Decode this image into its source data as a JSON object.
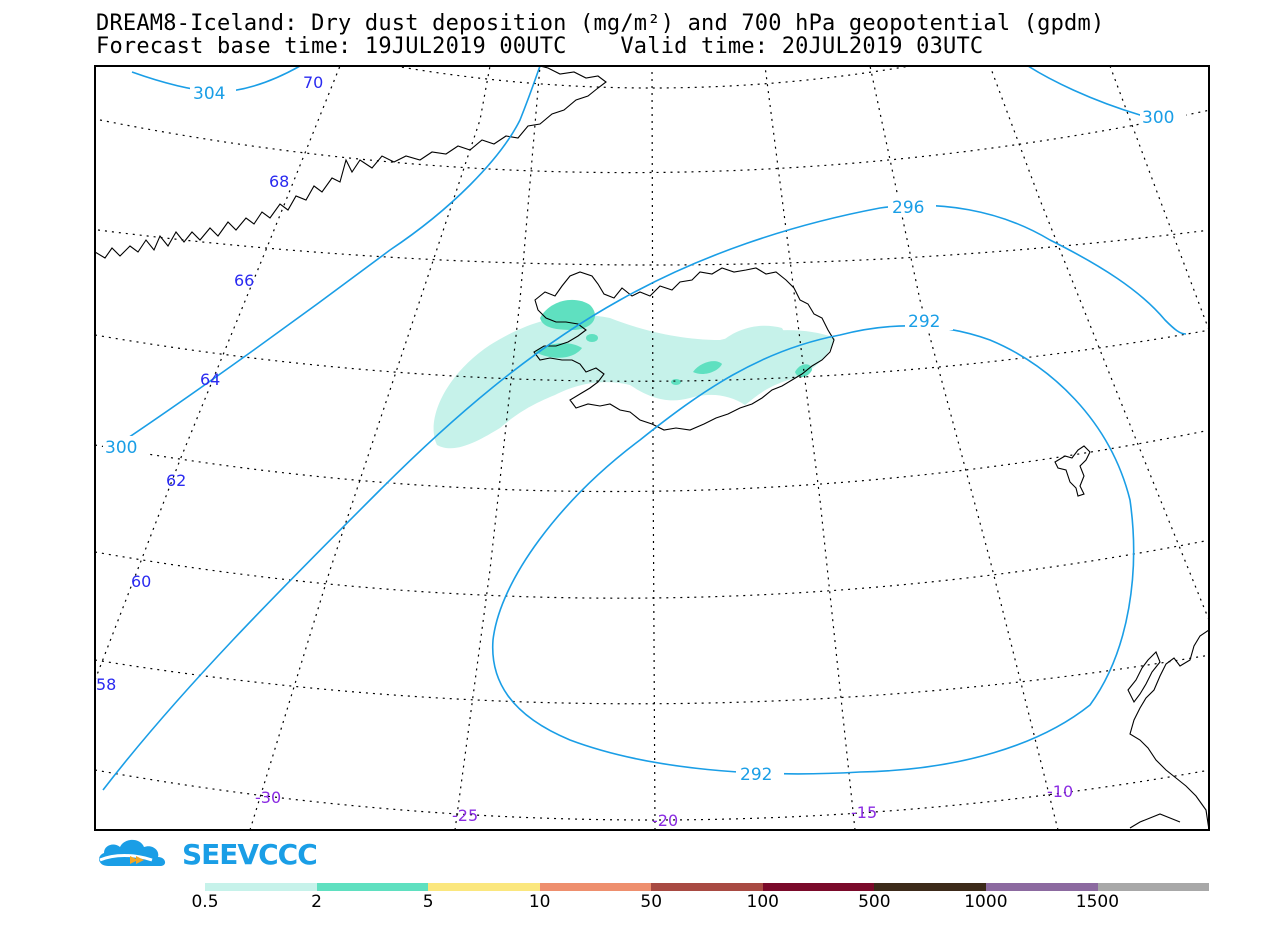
{
  "title": {
    "line1": "DREAM8-Iceland: Dry dust deposition (mg/m²) and 700 hPa geopotential (gpdm)",
    "line2": "Forecast base time: 19JUL2019 00UTC    Valid time: 20JUL2019 03UTC"
  },
  "map": {
    "lat_labels": [
      "70",
      "68",
      "66",
      "64",
      "62",
      "60",
      "58"
    ],
    "lon_labels": [
      "-30",
      "-25",
      "-20",
      "-15",
      "-10"
    ],
    "contour_labels": [
      "304",
      "300",
      "300",
      "296",
      "292",
      "292"
    ],
    "contour_color": "#1a9ee6",
    "dust_color_light": "#c6f2ea",
    "dust_color_mid": "#5fe0c0"
  },
  "logo": {
    "text": "SEEVCCC",
    "icon": "cloud-arrow-icon"
  },
  "legend": {
    "labels": [
      "0.5",
      "2",
      "5",
      "10",
      "50",
      "100",
      "500",
      "1000",
      "1500"
    ],
    "colors": [
      "#c6f2ea",
      "#5fe0c0",
      "#fbe77e",
      "#ee8f6e",
      "#a84a42",
      "#7a0a2a",
      "#3c2a1a",
      "#8c6aa0",
      "#a8a8a8"
    ]
  }
}
